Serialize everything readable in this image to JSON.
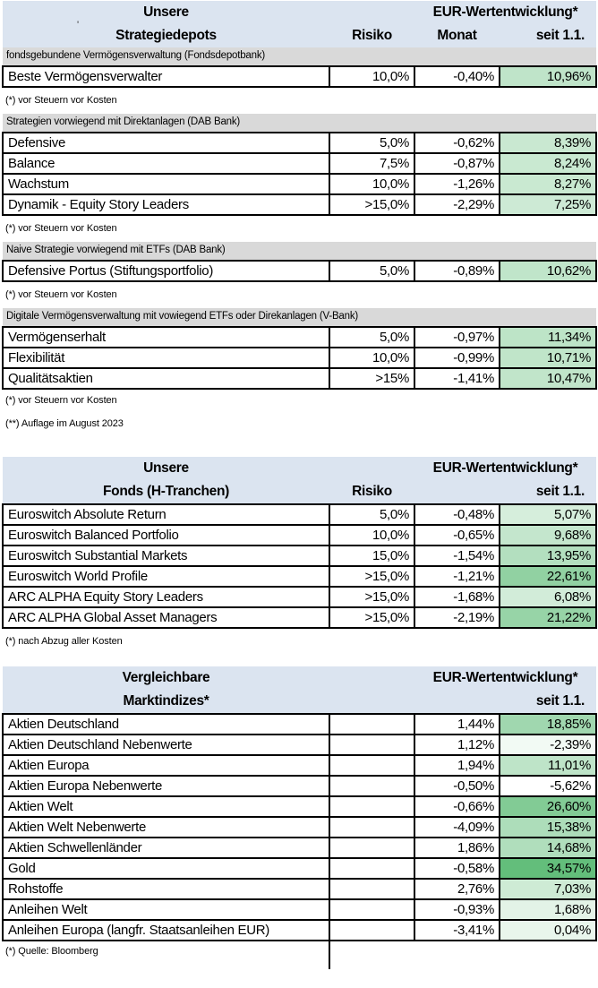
{
  "colors": {
    "header_bg": "#dbe4f0",
    "section_bg": "#d9d9d9",
    "border": "#000000"
  },
  "color_scale": {
    "min": -5.62,
    "max": 34.57,
    "min_color": "#FFFFFF",
    "max_color": "#63BE7B"
  },
  "artifact": {
    "stray_mark": "'"
  },
  "tables": [
    {
      "header": {
        "line1": "Unsere",
        "line2": "Strategiedepots",
        "eur": "EUR-Wertentwicklung*",
        "risiko": "Risiko",
        "monat": "Monat",
        "seit": "seit 1.1."
      },
      "sections": [
        {
          "bar": "fondsgebundene Vermögensverwaltung (Fondsdepotbank)",
          "rows": [
            {
              "label": "Beste Vermögensverwalter",
              "risiko": "10,0%",
              "monat": "-0,40%",
              "seit": "10,96%",
              "seit_num": 10.96
            }
          ],
          "footnotes": [
            "(*) vor Steuern vor Kosten"
          ]
        },
        {
          "bar": "Strategien vorwiegend mit Direktanlagen (DAB Bank)",
          "rows": [
            {
              "label": "Defensive",
              "risiko": "5,0%",
              "monat": "-0,62%",
              "seit": "8,39%",
              "seit_num": 8.39
            },
            {
              "label": "Balance",
              "risiko": "7,5%",
              "monat": "-0,87%",
              "seit": "8,24%",
              "seit_num": 8.24
            },
            {
              "label": "Wachstum",
              "risiko": "10,0%",
              "monat": "-1,26%",
              "seit": "8,27%",
              "seit_num": 8.27
            },
            {
              "label": "Dynamik - Equity Story Leaders",
              "risiko": ">15,0%",
              "monat": "-2,29%",
              "seit": "7,25%",
              "seit_num": 7.25
            }
          ],
          "footnotes": [
            "(*) vor Steuern vor Kosten"
          ]
        },
        {
          "bar": "Naive Strategie vorwiegend mit ETFs (DAB Bank)",
          "rows": [
            {
              "label": "Defensive Portus (Stiftungsportfolio)",
              "risiko": "5,0%",
              "monat": "-0,89%",
              "seit": "10,62%",
              "seit_num": 10.62
            }
          ],
          "footnotes": [
            "(*) vor Steuern vor Kosten"
          ]
        },
        {
          "bar": "Digitale Vermögensverwaltung mit vowiegend ETFs oder Direkanlagen (V-Bank)",
          "rows": [
            {
              "label": "Vermögenserhalt",
              "risiko": "5,0%",
              "monat": "-0,97%",
              "seit": "11,34%",
              "seit_num": 11.34
            },
            {
              "label": "Flexibilität",
              "risiko": "10,0%",
              "monat": "-0,99%",
              "seit": "10,71%",
              "seit_num": 10.71
            },
            {
              "label": "Qualitätsaktien",
              "risiko": ">15%",
              "monat": "-1,41%",
              "seit": "10,47%",
              "seit_num": 10.47
            }
          ],
          "footnotes": [
            "(*) vor Steuern vor Kosten",
            "(**) Auflage im August 2023"
          ]
        }
      ]
    },
    {
      "header": {
        "line1": "Unsere",
        "line2": "Fonds (H-Tranchen)",
        "eur": "EUR-Wertentwicklung*",
        "risiko": "Risiko",
        "seit": "seit 1.1."
      },
      "sections": [
        {
          "rows": [
            {
              "label": "Euroswitch Absolute Return",
              "risiko": "5,0%",
              "monat": "-0,48%",
              "seit": "5,07%",
              "seit_num": 5.07
            },
            {
              "label": "Euroswitch Balanced Portfolio",
              "risiko": "10,0%",
              "monat": "-0,65%",
              "seit": "9,68%",
              "seit_num": 9.68
            },
            {
              "label": "Euroswitch Substantial Markets",
              "risiko": "15,0%",
              "monat": "-1,54%",
              "seit": "13,95%",
              "seit_num": 13.95
            },
            {
              "label": "Euroswitch World Profile",
              "risiko": ">15,0%",
              "monat": "-1,21%",
              "seit": "22,61%",
              "seit_num": 22.61
            },
            {
              "label": "ARC ALPHA Equity Story Leaders",
              "risiko": ">15,0%",
              "monat": "-1,68%",
              "seit": "6,08%",
              "seit_num": 6.08
            },
            {
              "label": "ARC ALPHA Global Asset Managers",
              "risiko": ">15,0%",
              "monat": "-2,19%",
              "seit": "21,22%",
              "seit_num": 21.22
            }
          ],
          "footnotes": [
            "(*) nach Abzug aller Kosten"
          ]
        }
      ]
    },
    {
      "header": {
        "line1": "Vergleichbare",
        "line2": "Marktindizes*",
        "eur": "EUR-Wertentwicklung*",
        "seit": "seit 1.1."
      },
      "sections": [
        {
          "rows": [
            {
              "label": "Aktien Deutschland",
              "risiko": "",
              "monat": "1,44%",
              "seit": "18,85%",
              "seit_num": 18.85
            },
            {
              "label": "Aktien Deutschland Nebenwerte",
              "risiko": "",
              "monat": "1,12%",
              "seit": "-2,39%",
              "seit_num": -2.39
            },
            {
              "label": "Aktien Europa",
              "risiko": "",
              "monat": "1,94%",
              "seit": "11,01%",
              "seit_num": 11.01
            },
            {
              "label": "Aktien Europa Nebenwerte",
              "risiko": "",
              "monat": "-0,50%",
              "seit": "-5,62%",
              "seit_num": -5.62
            },
            {
              "label": "Aktien Welt",
              "risiko": "",
              "monat": "-0,66%",
              "seit": "26,60%",
              "seit_num": 26.6
            },
            {
              "label": "Aktien Welt Nebenwerte",
              "risiko": "",
              "monat": "-4,09%",
              "seit": "15,38%",
              "seit_num": 15.38
            },
            {
              "label": "Aktien Schwellenländer",
              "risiko": "",
              "monat": "1,86%",
              "seit": "14,68%",
              "seit_num": 14.68
            },
            {
              "label": "Gold",
              "risiko": "",
              "monat": "-0,58%",
              "seit": "34,57%",
              "seit_num": 34.57
            },
            {
              "label": "Rohstoffe",
              "risiko": "",
              "monat": "2,76%",
              "seit": "7,03%",
              "seit_num": 7.03
            },
            {
              "label": "Anleihen Welt",
              "risiko": "",
              "monat": "-0,93%",
              "seit": "1,68%",
              "seit_num": 1.68
            },
            {
              "label": "Anleihen Europa (langfr. Staatsanleihen EUR)",
              "risiko": "",
              "monat": "-3,41%",
              "seit": "0,04%",
              "seit_num": 0.04
            }
          ],
          "footnotes": [
            {
              "text": "(*) Quelle: Bloomberg",
              "ruled": true
            }
          ]
        }
      ]
    }
  ]
}
